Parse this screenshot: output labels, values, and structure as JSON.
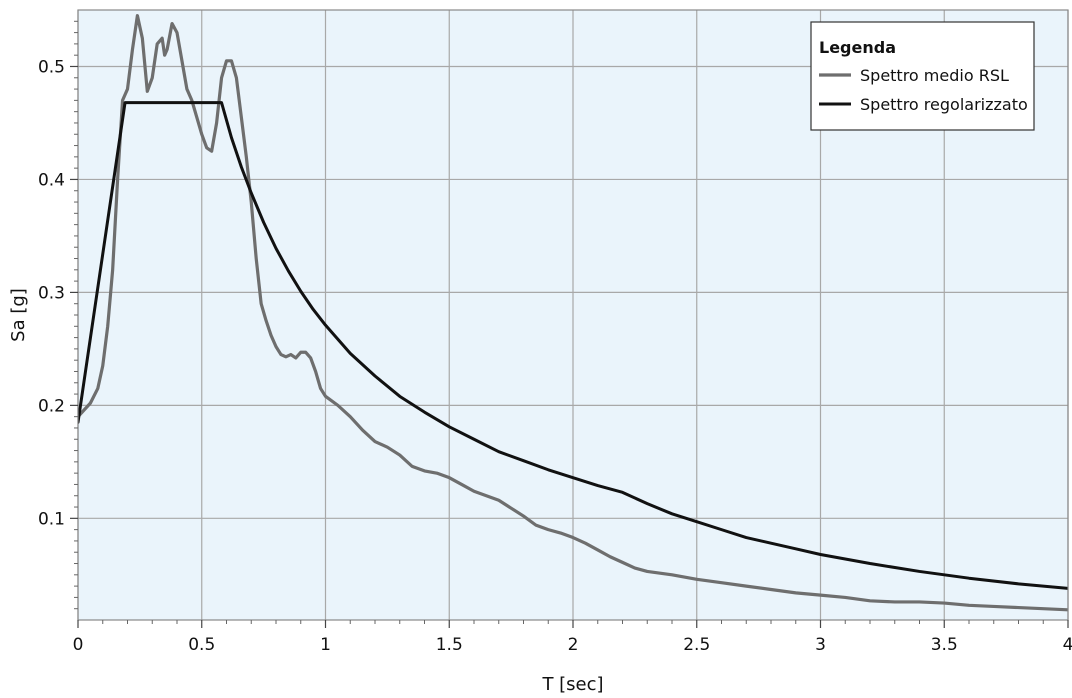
{
  "chart_data": {
    "type": "line",
    "title": "",
    "xlabel": "T [sec]",
    "ylabel": "Sa [g]",
    "xlim": [
      0,
      4
    ],
    "ylim": [
      0.01,
      0.55
    ],
    "x_ticks": [
      0,
      0.5,
      1,
      1.5,
      2,
      2.5,
      3,
      3.5,
      4
    ],
    "x_tick_labels": [
      "0",
      "0.5",
      "1",
      "1.5",
      "2",
      "2.5",
      "3",
      "3.5",
      "4"
    ],
    "y_ticks": [
      0.1,
      0.2,
      0.3,
      0.4,
      0.5
    ],
    "y_tick_labels": [
      "0.1",
      "0.2",
      "0.3",
      "0.4",
      "0.5"
    ],
    "grid": true,
    "plot_background": "#eaf4fb",
    "grid_color": "#a8a8a8",
    "legend": {
      "title": "Legenda",
      "placement": "top-right"
    },
    "series": [
      {
        "name": "Spettro medio RSL",
        "color": "#6e6e6e",
        "points": [
          [
            0.0,
            0.19
          ],
          [
            0.05,
            0.202
          ],
          [
            0.08,
            0.215
          ],
          [
            0.1,
            0.235
          ],
          [
            0.12,
            0.27
          ],
          [
            0.14,
            0.32
          ],
          [
            0.16,
            0.4
          ],
          [
            0.18,
            0.47
          ],
          [
            0.2,
            0.48
          ],
          [
            0.22,
            0.515
          ],
          [
            0.24,
            0.545
          ],
          [
            0.26,
            0.525
          ],
          [
            0.28,
            0.478
          ],
          [
            0.3,
            0.49
          ],
          [
            0.32,
            0.52
          ],
          [
            0.34,
            0.525
          ],
          [
            0.35,
            0.51
          ],
          [
            0.36,
            0.515
          ],
          [
            0.38,
            0.538
          ],
          [
            0.4,
            0.53
          ],
          [
            0.42,
            0.505
          ],
          [
            0.44,
            0.48
          ],
          [
            0.46,
            0.47
          ],
          [
            0.48,
            0.455
          ],
          [
            0.5,
            0.44
          ],
          [
            0.52,
            0.428
          ],
          [
            0.54,
            0.425
          ],
          [
            0.56,
            0.45
          ],
          [
            0.58,
            0.49
          ],
          [
            0.6,
            0.505
          ],
          [
            0.62,
            0.505
          ],
          [
            0.64,
            0.49
          ],
          [
            0.66,
            0.455
          ],
          [
            0.68,
            0.42
          ],
          [
            0.7,
            0.38
          ],
          [
            0.72,
            0.33
          ],
          [
            0.74,
            0.29
          ],
          [
            0.76,
            0.275
          ],
          [
            0.78,
            0.262
          ],
          [
            0.8,
            0.252
          ],
          [
            0.82,
            0.245
          ],
          [
            0.84,
            0.243
          ],
          [
            0.86,
            0.245
          ],
          [
            0.88,
            0.242
          ],
          [
            0.9,
            0.247
          ],
          [
            0.92,
            0.247
          ],
          [
            0.94,
            0.242
          ],
          [
            0.96,
            0.23
          ],
          [
            0.98,
            0.215
          ],
          [
            1.0,
            0.208
          ],
          [
            1.05,
            0.2
          ],
          [
            1.1,
            0.19
          ],
          [
            1.15,
            0.178
          ],
          [
            1.2,
            0.168
          ],
          [
            1.25,
            0.163
          ],
          [
            1.3,
            0.156
          ],
          [
            1.35,
            0.146
          ],
          [
            1.4,
            0.142
          ],
          [
            1.45,
            0.14
          ],
          [
            1.5,
            0.136
          ],
          [
            1.55,
            0.13
          ],
          [
            1.6,
            0.124
          ],
          [
            1.65,
            0.12
          ],
          [
            1.7,
            0.116
          ],
          [
            1.75,
            0.109
          ],
          [
            1.8,
            0.102
          ],
          [
            1.85,
            0.094
          ],
          [
            1.9,
            0.09
          ],
          [
            1.95,
            0.087
          ],
          [
            2.0,
            0.083
          ],
          [
            2.05,
            0.078
          ],
          [
            2.1,
            0.072
          ],
          [
            2.15,
            0.066
          ],
          [
            2.2,
            0.061
          ],
          [
            2.25,
            0.056
          ],
          [
            2.3,
            0.053
          ],
          [
            2.4,
            0.05
          ],
          [
            2.5,
            0.046
          ],
          [
            2.6,
            0.043
          ],
          [
            2.7,
            0.04
          ],
          [
            2.8,
            0.037
          ],
          [
            2.9,
            0.034
          ],
          [
            3.0,
            0.032
          ],
          [
            3.1,
            0.03
          ],
          [
            3.2,
            0.027
          ],
          [
            3.3,
            0.026
          ],
          [
            3.4,
            0.026
          ],
          [
            3.5,
            0.025
          ],
          [
            3.6,
            0.023
          ],
          [
            3.7,
            0.022
          ],
          [
            3.8,
            0.021
          ],
          [
            3.9,
            0.02
          ],
          [
            4.0,
            0.019
          ]
        ]
      },
      {
        "name": "Spettro regolarizzato",
        "color": "#111111",
        "points": [
          [
            0.0,
            0.185
          ],
          [
            0.19,
            0.468
          ],
          [
            0.58,
            0.468
          ],
          [
            0.62,
            0.437
          ],
          [
            0.66,
            0.411
          ],
          [
            0.7,
            0.388
          ],
          [
            0.75,
            0.362
          ],
          [
            0.8,
            0.339
          ],
          [
            0.85,
            0.319
          ],
          [
            0.9,
            0.301
          ],
          [
            0.95,
            0.285
          ],
          [
            1.0,
            0.271
          ],
          [
            1.1,
            0.246
          ],
          [
            1.2,
            0.226
          ],
          [
            1.3,
            0.208
          ],
          [
            1.4,
            0.194
          ],
          [
            1.5,
            0.181
          ],
          [
            1.6,
            0.17
          ],
          [
            1.7,
            0.159
          ],
          [
            1.8,
            0.151
          ],
          [
            1.9,
            0.143
          ],
          [
            2.0,
            0.136
          ],
          [
            2.1,
            0.129
          ],
          [
            2.2,
            0.123
          ],
          [
            2.3,
            0.113
          ],
          [
            2.4,
            0.104
          ],
          [
            2.5,
            0.097
          ],
          [
            2.6,
            0.09
          ],
          [
            2.7,
            0.083
          ],
          [
            2.8,
            0.078
          ],
          [
            2.9,
            0.073
          ],
          [
            3.0,
            0.068
          ],
          [
            3.2,
            0.06
          ],
          [
            3.4,
            0.053
          ],
          [
            3.6,
            0.047
          ],
          [
            3.8,
            0.042
          ],
          [
            4.0,
            0.038
          ]
        ]
      }
    ]
  }
}
